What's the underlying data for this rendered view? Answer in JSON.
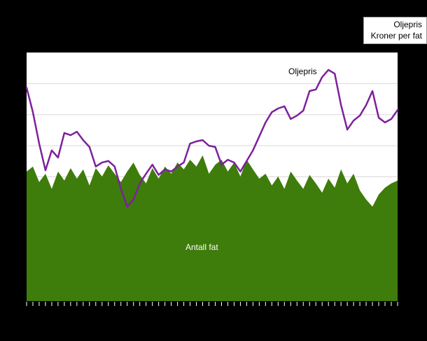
{
  "legend": {
    "line1": "Oljepris",
    "line2": "Kroner per fat"
  },
  "labels": {
    "line_label": "Oljepris",
    "area_label": "Antall fat"
  },
  "colors": {
    "background": "#000000",
    "plot_background": "#ffffff",
    "area": "#3e7c0b",
    "line": "#7d219c",
    "gridline": "#d9d9d9",
    "tick": "#ffffff"
  },
  "chart_data": {
    "type": "area",
    "subtype": "area-plus-line-combo",
    "title": "",
    "xlabel": "",
    "ylabel": "",
    "x": [
      1,
      2,
      3,
      4,
      5,
      6,
      7,
      8,
      9,
      10,
      11,
      12,
      13,
      14,
      15,
      16,
      17,
      18,
      19,
      20,
      21,
      22,
      23,
      24,
      25,
      26,
      27,
      28,
      29,
      30,
      31,
      32,
      33,
      34,
      35,
      36,
      37,
      38,
      39,
      40,
      41,
      42,
      43,
      44,
      45,
      46,
      47,
      48,
      49,
      50,
      51,
      52,
      53,
      54,
      55,
      56,
      57,
      58,
      59,
      60
    ],
    "x_tick_labels_visible": false,
    "y_tick_labels_visible": false,
    "ylim": [
      0,
      800
    ],
    "grid": "horizontal",
    "grid_step": 100,
    "legend_position": "top-right",
    "legend_entries": [
      "Oljepris",
      "Kroner per fat"
    ],
    "series": [
      {
        "name": "Antall fat",
        "type": "area",
        "color": "#3e7c0b",
        "values": [
          417,
          433,
          383,
          410,
          361,
          417,
          388,
          428,
          394,
          424,
          372,
          428,
          401,
          437,
          410,
          383,
          417,
          446,
          406,
          379,
          428,
          394,
          433,
          410,
          446,
          424,
          455,
          433,
          469,
          410,
          439,
          455,
          417,
          446,
          401,
          455,
          424,
          394,
          410,
          372,
          401,
          361,
          417,
          388,
          361,
          406,
          379,
          349,
          394,
          365,
          424,
          379,
          410,
          356,
          327,
          304,
          343,
          365,
          379,
          388
        ]
      },
      {
        "name": "Oljepris",
        "type": "line",
        "unit": "Kroner per fat",
        "color": "#7d219c",
        "values": [
          687,
          608,
          507,
          421,
          485,
          462,
          541,
          534,
          545,
          518,
          496,
          433,
          446,
          451,
          433,
          361,
          304,
          327,
          379,
          410,
          439,
          406,
          424,
          417,
          433,
          446,
          507,
          514,
          518,
          500,
          496,
          439,
          455,
          446,
          417,
          451,
          485,
          530,
          575,
          608,
          620,
          627,
          586,
          597,
          613,
          676,
          681,
          721,
          744,
          732,
          631,
          552,
          581,
          597,
          631,
          676,
          590,
          575,
          586,
          615
        ]
      }
    ]
  }
}
